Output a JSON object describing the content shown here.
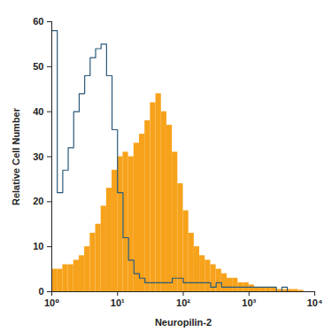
{
  "chart_data": {
    "type": "histogram",
    "x_label": "Neuropilin-2",
    "y_label": "Relative Cell Number",
    "log": "x",
    "bins": [
      1,
      1.212,
      1.468,
      1.778,
      2.154,
      2.61,
      3.162,
      3.831,
      4.642,
      5.623,
      6.813,
      8.254,
      10,
      12.12,
      14.68,
      17.78,
      21.54,
      26.1,
      31.62,
      38.31,
      46.42,
      56.23,
      68.13,
      82.54,
      100,
      121.2,
      146.8,
      177.8,
      215.4,
      261,
      316.2,
      383.1,
      464.2,
      562.3,
      681.3,
      825.4,
      1000,
      1212,
      1468,
      1778,
      2154,
      2610,
      3162,
      3831,
      4642,
      5623,
      6813,
      8254,
      10000
    ],
    "series": [
      {
        "type": "bar",
        "color": "#f7a21b",
        "values": [
          5,
          5,
          6,
          6,
          7,
          8,
          10,
          13,
          15,
          19,
          23,
          27,
          30,
          31,
          30,
          33,
          35,
          38,
          42,
          44,
          40,
          37,
          31,
          24,
          18,
          13,
          10,
          8,
          7,
          6,
          5,
          4,
          3,
          3,
          2,
          2,
          1.5,
          1,
          1,
          1,
          1,
          0.5,
          0.5,
          0.5,
          0.5,
          0.3,
          0,
          0
        ]
      },
      {
        "type": "line",
        "color": "#2a5a7a",
        "values": [
          58,
          22,
          27,
          32,
          40,
          44,
          48,
          52,
          54,
          55,
          48,
          36,
          22,
          12,
          7,
          4,
          3,
          2,
          2,
          2,
          2,
          2,
          3,
          3,
          2,
          2,
          2,
          2,
          2,
          1,
          2,
          1,
          1,
          1,
          1,
          1,
          1,
          1,
          1,
          1,
          1,
          0,
          1,
          0,
          0,
          0,
          0,
          0
        ]
      }
    ],
    "xlim": [
      1,
      10000
    ],
    "xticks": [
      {
        "value": 1,
        "label": "10⁰"
      },
      {
        "value": 10,
        "label": "10¹"
      },
      {
        "value": 100,
        "label": "10²"
      },
      {
        "value": 1000,
        "label": "10³"
      },
      {
        "value": 10000,
        "label": "10⁴"
      }
    ],
    "ylim": [
      0,
      60
    ],
    "yticks": [
      0,
      10,
      20,
      30,
      40,
      50,
      60
    ]
  }
}
